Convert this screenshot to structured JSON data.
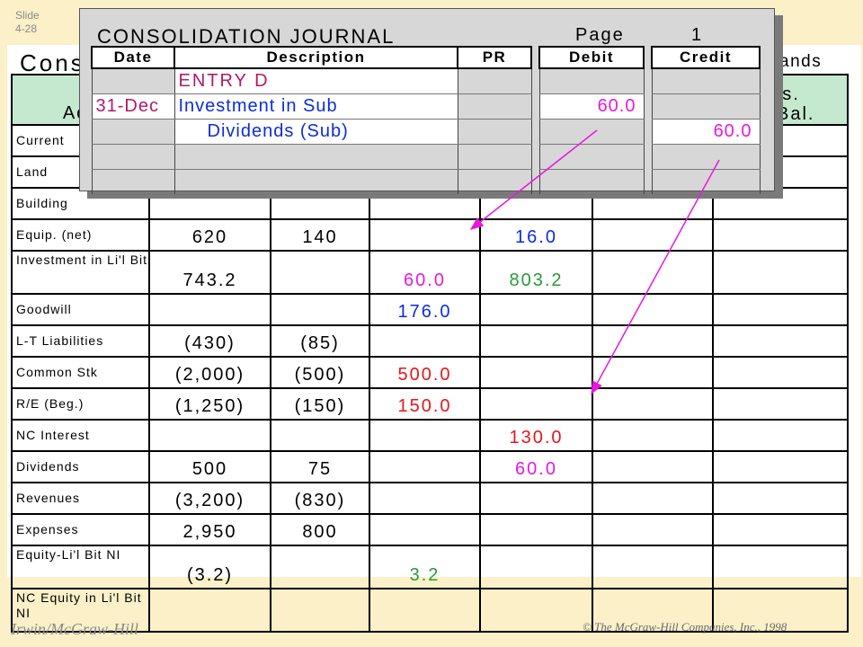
{
  "slide": {
    "line1": "Slide",
    "line2": "4-28"
  },
  "worksheet": {
    "title": "Cons",
    "thousands": "sands",
    "header_account": "Acc",
    "header_cons_1": "ons.",
    "header_cons_2": "Bal.",
    "rows": [
      {
        "account": "Current",
        "parent": "",
        "sub": "",
        "debit": "",
        "credit": "",
        "nci": "",
        "cons": ""
      },
      {
        "account": "Land",
        "parent": "",
        "sub": "",
        "debit": "",
        "credit": "",
        "nci": "",
        "cons": ""
      },
      {
        "account": "Building",
        "parent": "",
        "sub": "",
        "debit": "",
        "credit": "",
        "nci": "",
        "cons": ""
      },
      {
        "account": "Equip. (net)",
        "parent": "620",
        "sub": "140",
        "debit": "",
        "credit": "16.0",
        "nci": "",
        "cons": ""
      },
      {
        "account": "Investment in Li'l Bit",
        "parent": "743.2",
        "sub": "",
        "debit": "60.0",
        "credit": "803.2",
        "nci": "",
        "cons": ""
      },
      {
        "account": "Goodwill",
        "parent": "",
        "sub": "",
        "debit": "176.0",
        "credit": "",
        "nci": "",
        "cons": ""
      },
      {
        "account": "L-T Liabilities",
        "parent": "(430)",
        "sub": "(85)",
        "debit": "",
        "credit": "",
        "nci": "",
        "cons": ""
      },
      {
        "account": "Common Stk",
        "parent": "(2,000)",
        "sub": "(500)",
        "debit": "500.0",
        "credit": "",
        "nci": "",
        "cons": ""
      },
      {
        "account": "R/E (Beg.)",
        "parent": "(1,250)",
        "sub": "(150)",
        "debit": "150.0",
        "credit": "",
        "nci": "",
        "cons": ""
      },
      {
        "account": "NC Interest",
        "parent": "",
        "sub": "",
        "debit": "",
        "credit": "130.0",
        "nci": "",
        "cons": ""
      },
      {
        "account": "Dividends",
        "parent": "500",
        "sub": "75",
        "debit": "",
        "credit": "60.0",
        "nci": "",
        "cons": ""
      },
      {
        "account": "Revenues",
        "parent": "(3,200)",
        "sub": "(830)",
        "debit": "",
        "credit": "",
        "nci": "",
        "cons": ""
      },
      {
        "account": "Expenses",
        "parent": "2,950",
        "sub": "800",
        "debit": "",
        "credit": "",
        "nci": "",
        "cons": ""
      },
      {
        "account": "Equity-Li'l Bit NI",
        "parent": "(3.2)",
        "sub": "",
        "debit": "3.2",
        "credit": "",
        "nci": "",
        "cons": ""
      },
      {
        "account": "NC Equity in Li'l Bit NI",
        "parent": "",
        "sub": "",
        "debit": "",
        "credit": "",
        "nci": "",
        "cons": ""
      }
    ],
    "colors": {
      "row4_credit": "#0b2ce0",
      "row5_debit": "#e817e0",
      "row5_credit": "#2a9a3a",
      "row6_debit": "#0b2ce0",
      "row8_debit": "#e8141a",
      "row9_debit": "#e8141a",
      "row10_credit": "#e8141a",
      "row11_credit": "#e817e0",
      "row14_debit": "#2a9a3a",
      "header_bg": "#c5e9cf"
    }
  },
  "journal": {
    "title": "CONSOLIDATION JOURNAL",
    "page_label": "Page",
    "page_number": "1",
    "columns": {
      "date": "Date",
      "description": "Description",
      "pr": "PR",
      "debit": "Debit",
      "credit": "Credit"
    },
    "rows": [
      {
        "date": "",
        "description": "ENTRY D",
        "pr": "",
        "debit": "",
        "credit": ""
      },
      {
        "date": "31-Dec",
        "description": "Investment in Sub",
        "pr": "",
        "debit": "60.0",
        "credit": ""
      },
      {
        "date": "",
        "description": "Dividends (Sub)",
        "pr": "",
        "debit": "",
        "credit": "60.0"
      },
      {
        "date": "",
        "description": "",
        "pr": "",
        "debit": "",
        "credit": ""
      },
      {
        "date": "",
        "description": "",
        "pr": "",
        "debit": "",
        "credit": ""
      }
    ]
  },
  "footer": {
    "publisher": "Irwin/McGraw-Hill",
    "copyright": "© The McGraw-Hill Companies, Inc., 1998"
  }
}
